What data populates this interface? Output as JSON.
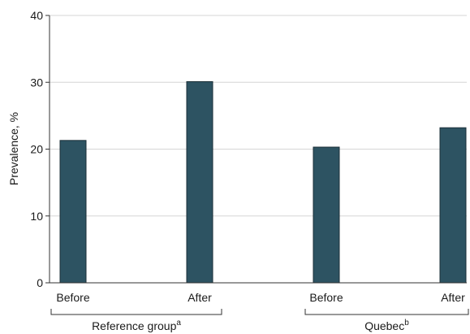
{
  "chart_data": {
    "type": "bar",
    "ylabel": "Prevalence, %",
    "ylim": [
      0,
      40
    ],
    "yticks": [
      0,
      10,
      20,
      30,
      40
    ],
    "grid": true,
    "bar_color": "#2d5362",
    "groups": [
      {
        "label": "Reference group",
        "superscript": "a",
        "categories": [
          "Before",
          "After"
        ],
        "values": [
          21.3,
          30.1
        ]
      },
      {
        "label": "Quebec",
        "superscript": "b",
        "categories": [
          "Before",
          "After"
        ],
        "values": [
          20.3,
          23.2
        ]
      }
    ]
  }
}
